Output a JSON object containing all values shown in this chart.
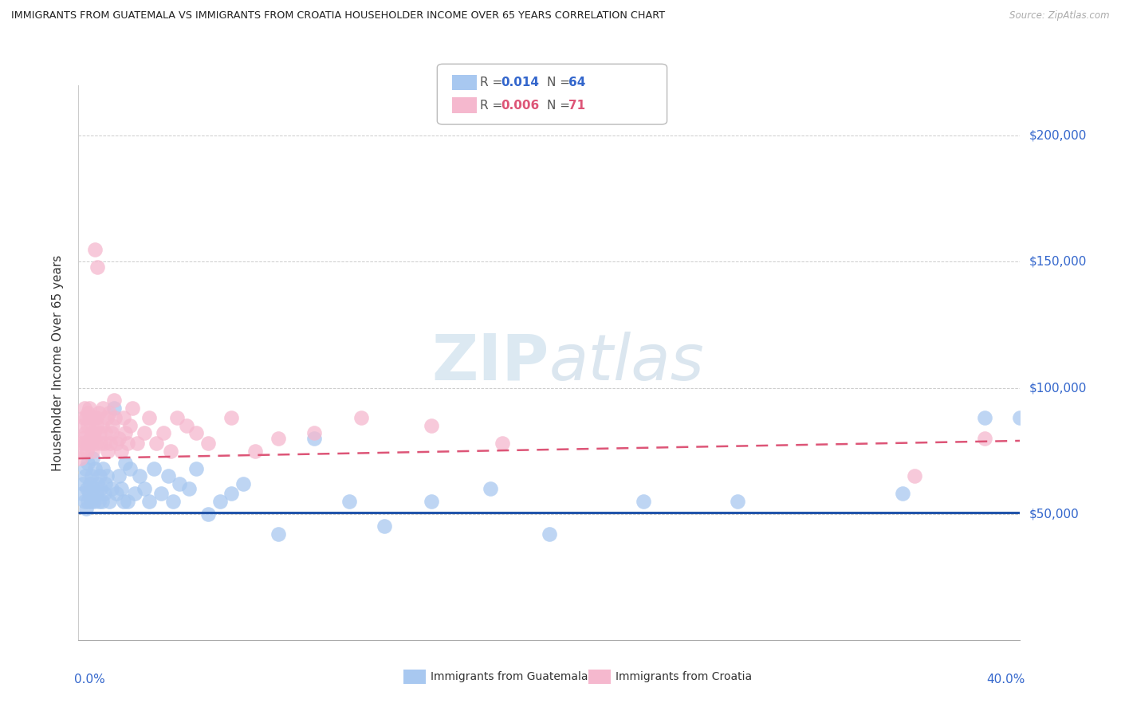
{
  "title": "IMMIGRANTS FROM GUATEMALA VS IMMIGRANTS FROM CROATIA HOUSEHOLDER INCOME OVER 65 YEARS CORRELATION CHART",
  "source": "Source: ZipAtlas.com",
  "ylabel": "Householder Income Over 65 years",
  "xlim": [
    0.0,
    40.0
  ],
  "ylim": [
    0,
    220000
  ],
  "yticks": [
    50000,
    100000,
    150000,
    200000
  ],
  "ytick_labels": [
    "$50,000",
    "$100,000",
    "$150,000",
    "$200,000"
  ],
  "legend1_R": "0.014",
  "legend1_N": "64",
  "legend2_R": "0.006",
  "legend2_N": "71",
  "color_guatemala": "#a8c8f0",
  "color_croatia": "#f5b8ce",
  "color_guatemala_line": "#2255aa",
  "color_croatia_line": "#dd5577",
  "watermark_color": "#d0e8f5",
  "guatemala_line_y": [
    50500,
    50500
  ],
  "croatia_line_y": [
    72000,
    79000
  ],
  "guat_x": [
    0.15,
    0.2,
    0.25,
    0.28,
    0.3,
    0.32,
    0.35,
    0.38,
    0.4,
    0.45,
    0.5,
    0.52,
    0.55,
    0.58,
    0.6,
    0.65,
    0.7,
    0.75,
    0.8,
    0.85,
    0.9,
    0.95,
    1.0,
    1.05,
    1.1,
    1.15,
    1.2,
    1.3,
    1.4,
    1.5,
    1.6,
    1.7,
    1.8,
    1.9,
    2.0,
    2.1,
    2.2,
    2.4,
    2.6,
    2.8,
    3.0,
    3.2,
    3.5,
    3.8,
    4.0,
    4.3,
    4.7,
    5.0,
    5.5,
    6.0,
    6.5,
    7.0,
    8.5,
    10.0,
    11.5,
    13.0,
    15.0,
    17.5,
    20.0,
    24.0,
    28.0,
    35.0,
    38.5,
    40.0
  ],
  "guat_y": [
    58000,
    62000,
    55000,
    65000,
    68000,
    52000,
    60000,
    55000,
    70000,
    58000,
    62000,
    55000,
    65000,
    60000,
    72000,
    55000,
    68000,
    58000,
    62000,
    55000,
    65000,
    60000,
    55000,
    68000,
    58000,
    62000,
    65000,
    55000,
    60000,
    92000,
    58000,
    65000,
    60000,
    55000,
    70000,
    55000,
    68000,
    58000,
    65000,
    60000,
    55000,
    68000,
    58000,
    65000,
    55000,
    62000,
    60000,
    68000,
    50000,
    55000,
    58000,
    62000,
    42000,
    80000,
    55000,
    45000,
    55000,
    60000,
    42000,
    55000,
    55000,
    58000,
    88000,
    88000
  ],
  "cro_x": [
    0.1,
    0.12,
    0.15,
    0.18,
    0.2,
    0.22,
    0.25,
    0.28,
    0.3,
    0.32,
    0.35,
    0.38,
    0.4,
    0.42,
    0.45,
    0.48,
    0.5,
    0.52,
    0.55,
    0.58,
    0.6,
    0.62,
    0.65,
    0.68,
    0.7,
    0.72,
    0.75,
    0.78,
    0.8,
    0.85,
    0.9,
    0.95,
    1.0,
    1.05,
    1.1,
    1.15,
    1.2,
    1.25,
    1.3,
    1.35,
    1.4,
    1.45,
    1.5,
    1.55,
    1.6,
    1.7,
    1.8,
    1.9,
    2.0,
    2.1,
    2.2,
    2.3,
    2.5,
    2.8,
    3.0,
    3.3,
    3.6,
    3.9,
    4.2,
    4.6,
    5.0,
    5.5,
    6.5,
    7.5,
    8.5,
    10.0,
    12.0,
    15.0,
    18.0,
    35.5,
    38.5
  ],
  "cro_y": [
    72000,
    78000,
    85000,
    80000,
    75000,
    88000,
    92000,
    78000,
    82000,
    88000,
    75000,
    90000,
    85000,
    78000,
    92000,
    80000,
    88000,
    78000,
    82000,
    88000,
    75000,
    80000,
    82000,
    88000,
    155000,
    78000,
    85000,
    88000,
    148000,
    90000,
    82000,
    78000,
    85000,
    92000,
    78000,
    82000,
    88000,
    75000,
    90000,
    78000,
    82000,
    85000,
    95000,
    88000,
    78000,
    80000,
    75000,
    88000,
    82000,
    78000,
    85000,
    92000,
    78000,
    82000,
    88000,
    78000,
    82000,
    75000,
    88000,
    85000,
    82000,
    78000,
    88000,
    75000,
    80000,
    82000,
    88000,
    85000,
    78000,
    65000,
    80000
  ]
}
